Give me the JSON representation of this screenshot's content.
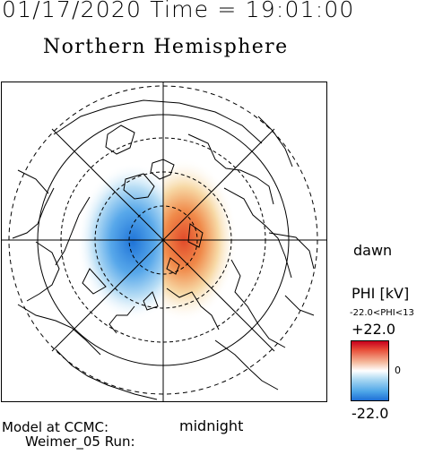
{
  "header": {
    "datetime": "01/17/2020 Time = 19:01:00",
    "title": "Northern Hemisphere"
  },
  "plot": {
    "label_dawn": "dawn",
    "label_midnight": "midnight"
  },
  "colorbar": {
    "title": "PHI [kV]",
    "range_text": "-22.0<PHI<13",
    "max_label": "+22.0",
    "zero_label": "0",
    "min_label": "-22.0",
    "colors": {
      "positive": "#c8001e",
      "neutral": "#ffffff",
      "negative": "#1e6fd6"
    }
  },
  "footer": {
    "model_line1": "Model at CCMC:",
    "model_line2": "Weimer_05 Run:"
  }
}
